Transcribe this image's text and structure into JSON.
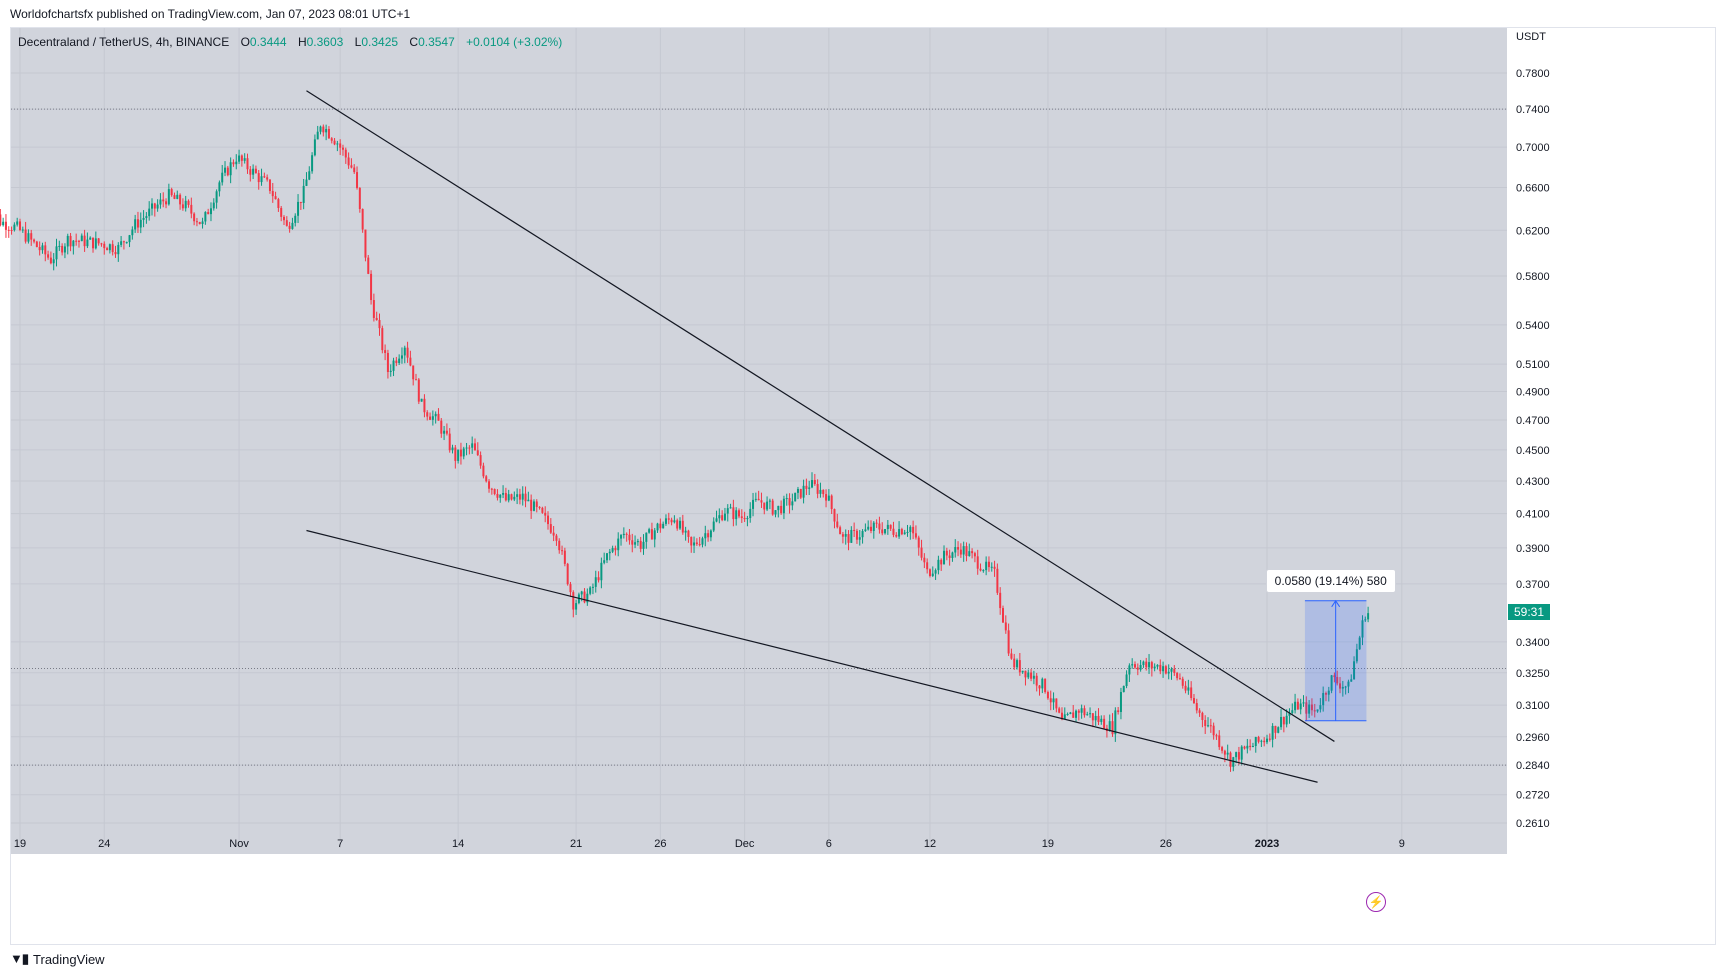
{
  "header": {
    "published_line": "Worldofchartsfx published on TradingView.com, Jan 07, 2023 08:01 UTC+1"
  },
  "legend": {
    "symbol": "Decentraland / TetherUS, 4h, BINANCE",
    "open_label": "O",
    "open_value": "0.3444",
    "high_label": "H",
    "high_value": "0.3603",
    "low_label": "L",
    "low_value": "0.3425",
    "close_label": "C",
    "close_value": "0.3547",
    "change": "+0.0104 (+3.02%)"
  },
  "footer": {
    "logo_text": "TradingView",
    "logo_icon": "tradingview-logo-icon"
  },
  "colors": {
    "up": "#089981",
    "down": "#f23645",
    "background": "#d1d4dc",
    "measure_fill": "#2962ff",
    "countdown_bg": "#089981"
  },
  "chart_data": {
    "type": "candlestick",
    "price_axis_unit": "USDT",
    "scale": "log",
    "y_ticks": [
      "0.7800",
      "0.7400",
      "0.7000",
      "0.6600",
      "0.6200",
      "0.5800",
      "0.5400",
      "0.5100",
      "0.4900",
      "0.4700",
      "0.4500",
      "0.4300",
      "0.4100",
      "0.3900",
      "0.3700",
      "0.3400",
      "0.3250",
      "0.3100",
      "0.2960",
      "0.2840",
      "0.2720",
      "0.2610"
    ],
    "x_ticks": [
      "19",
      "24",
      "Nov",
      "7",
      "14",
      "21",
      "26",
      "Dec",
      "6",
      "12",
      "19",
      "26",
      "2023",
      "9"
    ],
    "x_tick_dates": [
      "2022-10-19",
      "2022-10-24",
      "2022-11-01",
      "2022-11-07",
      "2022-11-14",
      "2022-11-21",
      "2022-11-26",
      "2022-12-01",
      "2022-12-06",
      "2022-12-12",
      "2022-12-19",
      "2022-12-26",
      "2023-01-01",
      "2023-01-09"
    ],
    "bold_x_tick": "2023",
    "price_path": [
      [
        "2022-10-17",
        0.655
      ],
      [
        "2022-10-18",
        0.628
      ],
      [
        "2022-10-19",
        0.622
      ],
      [
        "2022-10-21",
        0.594
      ],
      [
        "2022-10-22",
        0.612
      ],
      [
        "2022-10-24",
        0.608
      ],
      [
        "2022-10-25",
        0.604
      ],
      [
        "2022-10-26",
        0.625
      ],
      [
        "2022-10-28",
        0.652
      ],
      [
        "2022-10-29",
        0.642
      ],
      [
        "2022-10-30",
        0.625
      ],
      [
        "2022-10-31",
        0.665
      ],
      [
        "2022-11-01",
        0.69
      ],
      [
        "2022-11-02",
        0.675
      ],
      [
        "2022-11-03",
        0.66
      ],
      [
        "2022-11-04",
        0.622
      ],
      [
        "2022-11-05",
        0.655
      ],
      [
        "2022-11-06",
        0.725
      ],
      [
        "2022-11-07",
        0.705
      ],
      [
        "2022-11-08",
        0.675
      ],
      [
        "2022-11-09",
        0.56
      ],
      [
        "2022-11-10",
        0.505
      ],
      [
        "2022-11-11",
        0.525
      ],
      [
        "2022-11-12",
        0.48
      ],
      [
        "2022-11-13",
        0.468
      ],
      [
        "2022-11-14",
        0.445
      ],
      [
        "2022-11-15",
        0.452
      ],
      [
        "2022-11-16",
        0.428
      ],
      [
        "2022-11-17",
        0.418
      ],
      [
        "2022-11-18",
        0.42
      ],
      [
        "2022-11-19",
        0.41
      ],
      [
        "2022-11-20",
        0.398
      ],
      [
        "2022-11-21",
        0.36
      ],
      [
        "2022-11-22",
        0.365
      ],
      [
        "2022-11-23",
        0.385
      ],
      [
        "2022-11-24",
        0.398
      ],
      [
        "2022-11-25",
        0.392
      ],
      [
        "2022-11-26",
        0.402
      ],
      [
        "2022-11-27",
        0.408
      ],
      [
        "2022-11-28",
        0.39
      ],
      [
        "2022-11-29",
        0.4
      ],
      [
        "2022-11-30",
        0.412
      ],
      [
        "2022-12-01",
        0.408
      ],
      [
        "2022-12-02",
        0.418
      ],
      [
        "2022-12-03",
        0.412
      ],
      [
        "2022-12-04",
        0.418
      ],
      [
        "2022-12-05",
        0.428
      ],
      [
        "2022-12-06",
        0.422
      ],
      [
        "2022-12-07",
        0.395
      ],
      [
        "2022-12-08",
        0.398
      ],
      [
        "2022-12-09",
        0.402
      ],
      [
        "2022-12-10",
        0.4
      ],
      [
        "2022-12-11",
        0.402
      ],
      [
        "2022-12-12",
        0.376
      ],
      [
        "2022-12-13",
        0.385
      ],
      [
        "2022-12-14",
        0.39
      ],
      [
        "2022-12-15",
        0.382
      ],
      [
        "2022-12-16",
        0.375
      ],
      [
        "2022-12-17",
        0.33
      ],
      [
        "2022-12-18",
        0.325
      ],
      [
        "2022-12-19",
        0.318
      ],
      [
        "2022-12-20",
        0.302
      ],
      [
        "2022-12-21",
        0.308
      ],
      [
        "2022-12-22",
        0.304
      ],
      [
        "2022-12-23",
        0.3
      ],
      [
        "2022-12-24",
        0.33
      ],
      [
        "2022-12-25",
        0.328
      ],
      [
        "2022-12-26",
        0.328
      ],
      [
        "2022-12-27",
        0.322
      ],
      [
        "2022-12-28",
        0.308
      ],
      [
        "2022-12-29",
        0.298
      ],
      [
        "2022-12-30",
        0.286
      ],
      [
        "2022-12-31",
        0.291
      ],
      [
        "2023-01-01",
        0.295
      ],
      [
        "2023-01-02",
        0.303
      ],
      [
        "2023-01-03",
        0.31
      ],
      [
        "2023-01-04",
        0.307
      ],
      [
        "2023-01-05",
        0.322
      ],
      [
        "2023-01-06",
        0.318
      ],
      [
        "2023-01-07",
        0.3547
      ]
    ],
    "horizontal_lines": [
      0.74,
      0.327,
      0.284
    ],
    "trendlines": [
      {
        "name": "upper-trendline",
        "from": [
          "2022-11-05",
          0.76
        ],
        "to": [
          "2023-01-05",
          0.294
        ]
      },
      {
        "name": "lower-trendline",
        "from": [
          "2022-11-05",
          0.4
        ],
        "to": [
          "2023-01-04",
          0.277
        ]
      }
    ],
    "measure": {
      "label": "0.0580 (19.14%) 580",
      "from": [
        "2023-01-03",
        0.303
      ],
      "to": [
        "2023-01-06",
        0.361
      ]
    },
    "countdown": "59:31"
  }
}
